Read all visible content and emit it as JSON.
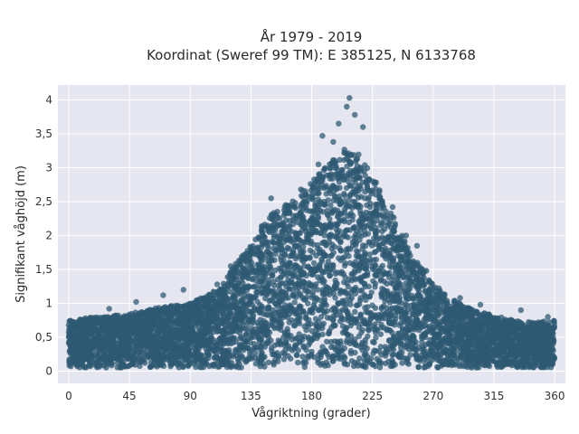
{
  "chart_data": {
    "type": "scatter",
    "title": "År 1979 - 2019",
    "subtitle": "Koordinat (Sweref 99 TM): E 385125, N 6133768",
    "xlabel": "Vågriktning (grader)",
    "ylabel": "Signifikant våghöjd (m)",
    "xlim": [
      -8,
      368
    ],
    "ylim": [
      -0.18,
      4.22
    ],
    "x_ticks": [
      0,
      45,
      90,
      135,
      180,
      225,
      270,
      315,
      360
    ],
    "x_tick_labels": [
      "0",
      "45",
      "90",
      "135",
      "180",
      "225",
      "270",
      "315",
      "360"
    ],
    "y_ticks": [
      0,
      0.5,
      1,
      1.5,
      2,
      2.5,
      3,
      3.5,
      4
    ],
    "y_tick_labels": [
      "0",
      "0,5",
      "1",
      "1,5",
      "2",
      "2,5",
      "3",
      "3,5",
      "4"
    ],
    "grid": true,
    "legend": "none",
    "envelope": {
      "description_direction_deg": [
        0,
        20,
        45,
        70,
        90,
        110,
        135,
        150,
        165,
        180,
        195,
        205,
        215,
        225,
        240,
        255,
        270,
        285,
        300,
        315,
        330,
        345,
        360
      ],
      "upper_max_m": [
        0.75,
        0.8,
        0.85,
        0.95,
        1.0,
        1.2,
        1.9,
        2.35,
        2.5,
        2.8,
        3.1,
        3.3,
        3.2,
        2.9,
        2.3,
        1.7,
        1.3,
        1.05,
        0.9,
        0.82,
        0.75,
        0.72,
        0.75
      ],
      "lower_min_m": [
        0.05,
        0.05,
        0.05,
        0.05,
        0.05,
        0.05,
        0.05,
        0.05,
        0.05,
        0.05,
        0.05,
        0.05,
        0.05,
        0.05,
        0.05,
        0.05,
        0.05,
        0.05,
        0.05,
        0.05,
        0.05,
        0.05,
        0.05
      ]
    },
    "outliers": [
      {
        "x": 208,
        "y": 4.03
      },
      {
        "x": 206,
        "y": 3.9
      },
      {
        "x": 212,
        "y": 3.78
      },
      {
        "x": 200,
        "y": 3.65
      },
      {
        "x": 218,
        "y": 3.6
      },
      {
        "x": 188,
        "y": 3.47
      },
      {
        "x": 196,
        "y": 3.38
      },
      {
        "x": 172,
        "y": 2.68
      },
      {
        "x": 185,
        "y": 3.05
      },
      {
        "x": 150,
        "y": 2.55
      },
      {
        "x": 160,
        "y": 2.42
      },
      {
        "x": 240,
        "y": 2.42
      },
      {
        "x": 250,
        "y": 2.0
      },
      {
        "x": 258,
        "y": 1.85
      },
      {
        "x": 265,
        "y": 1.48
      },
      {
        "x": 290,
        "y": 1.08
      },
      {
        "x": 305,
        "y": 0.98
      },
      {
        "x": 335,
        "y": 0.9
      },
      {
        "x": 355,
        "y": 0.8
      },
      {
        "x": 120,
        "y": 1.55
      },
      {
        "x": 110,
        "y": 1.28
      },
      {
        "x": 85,
        "y": 1.2
      },
      {
        "x": 70,
        "y": 1.12
      },
      {
        "x": 50,
        "y": 1.02
      },
      {
        "x": 30,
        "y": 0.92
      },
      {
        "x": 0,
        "y": 0.68
      },
      {
        "x": 1,
        "y": 0.74
      }
    ],
    "colors": {
      "point": "#2f5a73",
      "plot_background": "#e5e6ef",
      "grid": "#ffffff"
    }
  }
}
